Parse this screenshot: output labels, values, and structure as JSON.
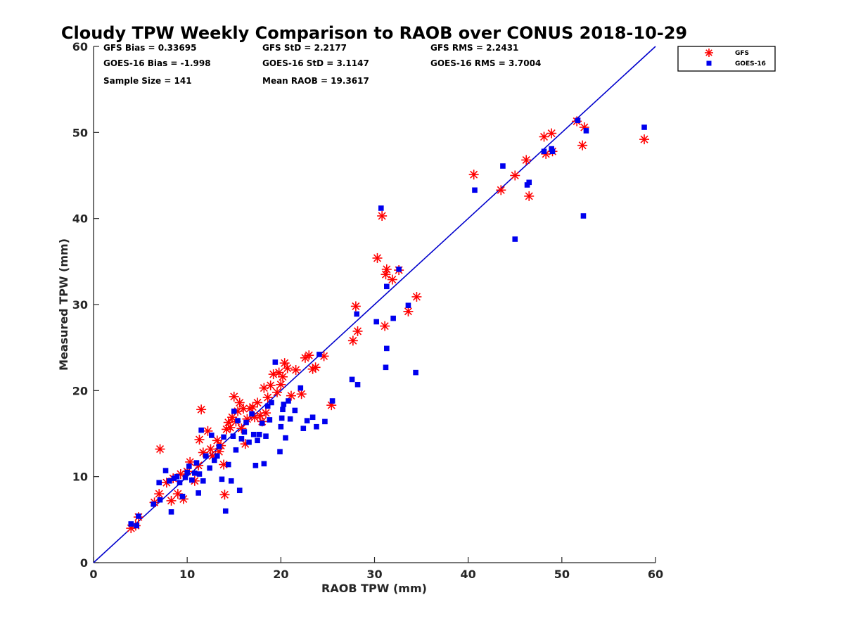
{
  "chart_data": {
    "type": "scatter",
    "title": "Cloudy TPW Weekly Comparison to RAOB over CONUS 2018-10-29",
    "xlabel": "RAOB TPW (mm)",
    "ylabel": "Measured TPW (mm)",
    "xlim": [
      0,
      60
    ],
    "ylim": [
      0,
      60
    ],
    "xticks": [
      "0",
      "10",
      "20",
      "30",
      "40",
      "50",
      "60"
    ],
    "yticks": [
      "0",
      "10",
      "20",
      "30",
      "40",
      "50",
      "60"
    ],
    "grid": false,
    "legend_position": "outside-top-right",
    "stats": {
      "gfs_bias": "GFS Bias = 0.33695",
      "gfs_std": "GFS StD = 2.2177",
      "gfs_rms": "GFS RMS = 2.2431",
      "goes_bias": "GOES-16 Bias = -1.998",
      "goes_std": "GOES-16 StD = 3.1147",
      "goes_rms": "GOES-16 RMS = 3.7004",
      "sample_size": "Sample Size = 141",
      "mean_raob": "Mean RAOB = 19.3617"
    },
    "reference_line": {
      "type": "one-to-one",
      "color": "#0000cc"
    },
    "series": [
      {
        "name": "GFS",
        "marker": "asterisk",
        "color": "#ff0000",
        "points": [
          [
            4.0,
            4.0
          ],
          [
            4.5,
            4.3
          ],
          [
            4.8,
            5.3
          ],
          [
            6.5,
            7.0
          ],
          [
            7.0,
            8.0
          ],
          [
            7.1,
            13.2
          ],
          [
            7.8,
            9.3
          ],
          [
            8.3,
            7.2
          ],
          [
            8.5,
            9.8
          ],
          [
            9.0,
            8.0
          ],
          [
            9.3,
            10.3
          ],
          [
            9.6,
            7.4
          ],
          [
            10.0,
            10.6
          ],
          [
            10.3,
            11.7
          ],
          [
            10.8,
            9.5
          ],
          [
            11.2,
            11.3
          ],
          [
            11.3,
            14.3
          ],
          [
            11.5,
            17.8
          ],
          [
            11.7,
            12.8
          ],
          [
            12.2,
            15.3
          ],
          [
            12.5,
            13.2
          ],
          [
            12.7,
            12.4
          ],
          [
            13.2,
            14.2
          ],
          [
            13.4,
            12.9
          ],
          [
            13.6,
            13.6
          ],
          [
            13.9,
            11.4
          ],
          [
            14.0,
            7.9
          ],
          [
            14.2,
            15.5
          ],
          [
            14.4,
            16.3
          ],
          [
            14.6,
            15.7
          ],
          [
            14.8,
            16.9
          ],
          [
            15.0,
            19.3
          ],
          [
            15.2,
            16.4
          ],
          [
            15.4,
            17.6
          ],
          [
            15.6,
            18.6
          ],
          [
            15.8,
            15.6
          ],
          [
            16.0,
            17.9
          ],
          [
            16.2,
            13.8
          ],
          [
            16.4,
            16.7
          ],
          [
            16.7,
            17.9
          ],
          [
            17.0,
            18.1
          ],
          [
            17.2,
            16.9
          ],
          [
            17.5,
            18.6
          ],
          [
            17.8,
            17.1
          ],
          [
            18.0,
            16.4
          ],
          [
            18.2,
            20.3
          ],
          [
            18.4,
            17.4
          ],
          [
            18.6,
            19.2
          ],
          [
            18.9,
            20.6
          ],
          [
            19.2,
            21.9
          ],
          [
            19.6,
            19.8
          ],
          [
            19.8,
            22.1
          ],
          [
            20.0,
            20.7
          ],
          [
            20.2,
            21.6
          ],
          [
            20.4,
            23.2
          ],
          [
            20.7,
            22.6
          ],
          [
            21.1,
            19.4
          ],
          [
            21.6,
            22.4
          ],
          [
            22.2,
            19.6
          ],
          [
            22.6,
            23.8
          ],
          [
            23.0,
            24.1
          ],
          [
            23.4,
            22.5
          ],
          [
            23.7,
            22.7
          ],
          [
            24.6,
            24.0
          ],
          [
            25.4,
            18.3
          ],
          [
            27.7,
            25.8
          ],
          [
            28.0,
            29.8
          ],
          [
            28.2,
            26.9
          ],
          [
            30.3,
            35.4
          ],
          [
            30.8,
            40.3
          ],
          [
            31.1,
            27.5
          ],
          [
            31.2,
            33.5
          ],
          [
            31.3,
            34.1
          ],
          [
            31.9,
            32.9
          ],
          [
            32.6,
            34.0
          ],
          [
            33.6,
            29.2
          ],
          [
            34.5,
            30.9
          ],
          [
            40.6,
            45.1
          ],
          [
            43.5,
            43.3
          ],
          [
            45.0,
            45.0
          ],
          [
            46.2,
            46.8
          ],
          [
            46.5,
            42.6
          ],
          [
            48.1,
            49.5
          ],
          [
            48.3,
            47.5
          ],
          [
            48.9,
            49.9
          ],
          [
            49.0,
            47.8
          ],
          [
            51.6,
            51.3
          ],
          [
            52.2,
            48.5
          ],
          [
            52.4,
            50.6
          ],
          [
            58.8,
            49.2
          ]
        ]
      },
      {
        "name": "GOES-16",
        "marker": "square",
        "color": "#0000ee",
        "points": [
          [
            4.0,
            4.5
          ],
          [
            4.6,
            4.3
          ],
          [
            4.8,
            5.4
          ],
          [
            6.4,
            6.8
          ],
          [
            7.0,
            9.3
          ],
          [
            7.1,
            7.3
          ],
          [
            7.7,
            10.7
          ],
          [
            8.1,
            9.5
          ],
          [
            8.3,
            5.9
          ],
          [
            8.6,
            9.8
          ],
          [
            8.9,
            10.0
          ],
          [
            9.2,
            9.3
          ],
          [
            9.5,
            7.7
          ],
          [
            9.8,
            9.9
          ],
          [
            10.0,
            10.5
          ],
          [
            10.2,
            11.2
          ],
          [
            10.5,
            9.6
          ],
          [
            10.8,
            10.4
          ],
          [
            11.0,
            11.6
          ],
          [
            11.2,
            8.1
          ],
          [
            11.3,
            10.3
          ],
          [
            11.5,
            15.4
          ],
          [
            11.7,
            9.5
          ],
          [
            12.0,
            12.4
          ],
          [
            12.4,
            11.0
          ],
          [
            12.6,
            14.8
          ],
          [
            12.9,
            11.9
          ],
          [
            13.2,
            12.4
          ],
          [
            13.4,
            13.5
          ],
          [
            13.7,
            9.7
          ],
          [
            13.9,
            14.6
          ],
          [
            14.1,
            6.0
          ],
          [
            14.4,
            11.4
          ],
          [
            14.7,
            9.5
          ],
          [
            14.9,
            14.7
          ],
          [
            15.0,
            17.6
          ],
          [
            15.2,
            13.1
          ],
          [
            15.4,
            16.5
          ],
          [
            15.6,
            8.4
          ],
          [
            15.8,
            14.4
          ],
          [
            16.1,
            15.2
          ],
          [
            16.3,
            16.3
          ],
          [
            16.6,
            14.0
          ],
          [
            16.9,
            17.3
          ],
          [
            17.1,
            14.9
          ],
          [
            17.3,
            11.3
          ],
          [
            17.5,
            14.2
          ],
          [
            17.7,
            14.9
          ],
          [
            18.0,
            16.2
          ],
          [
            18.2,
            11.5
          ],
          [
            18.4,
            14.7
          ],
          [
            18.6,
            18.2
          ],
          [
            18.8,
            16.6
          ],
          [
            19.0,
            18.6
          ],
          [
            19.4,
            23.3
          ],
          [
            19.9,
            12.9
          ],
          [
            20.0,
            15.8
          ],
          [
            20.1,
            16.8
          ],
          [
            20.2,
            17.8
          ],
          [
            20.3,
            18.4
          ],
          [
            20.5,
            14.5
          ],
          [
            20.8,
            18.8
          ],
          [
            21.0,
            16.7
          ],
          [
            21.5,
            17.7
          ],
          [
            22.1,
            20.3
          ],
          [
            22.4,
            15.6
          ],
          [
            22.8,
            16.5
          ],
          [
            23.4,
            16.9
          ],
          [
            23.8,
            15.8
          ],
          [
            24.1,
            24.2
          ],
          [
            24.7,
            16.4
          ],
          [
            25.5,
            18.8
          ],
          [
            27.6,
            21.3
          ],
          [
            28.1,
            28.9
          ],
          [
            28.2,
            20.7
          ],
          [
            30.2,
            28.0
          ],
          [
            30.7,
            41.2
          ],
          [
            31.2,
            22.7
          ],
          [
            31.3,
            24.9
          ],
          [
            31.3,
            32.1
          ],
          [
            32.0,
            28.4
          ],
          [
            32.6,
            34.1
          ],
          [
            33.6,
            29.9
          ],
          [
            34.4,
            22.1
          ],
          [
            40.7,
            43.3
          ],
          [
            43.7,
            46.1
          ],
          [
            45.0,
            37.6
          ],
          [
            46.3,
            43.9
          ],
          [
            46.5,
            44.2
          ],
          [
            48.1,
            47.8
          ],
          [
            48.9,
            48.1
          ],
          [
            49.0,
            47.8
          ],
          [
            51.7,
            51.4
          ],
          [
            52.3,
            40.3
          ],
          [
            52.6,
            50.2
          ],
          [
            58.8,
            50.6
          ]
        ]
      }
    ]
  }
}
